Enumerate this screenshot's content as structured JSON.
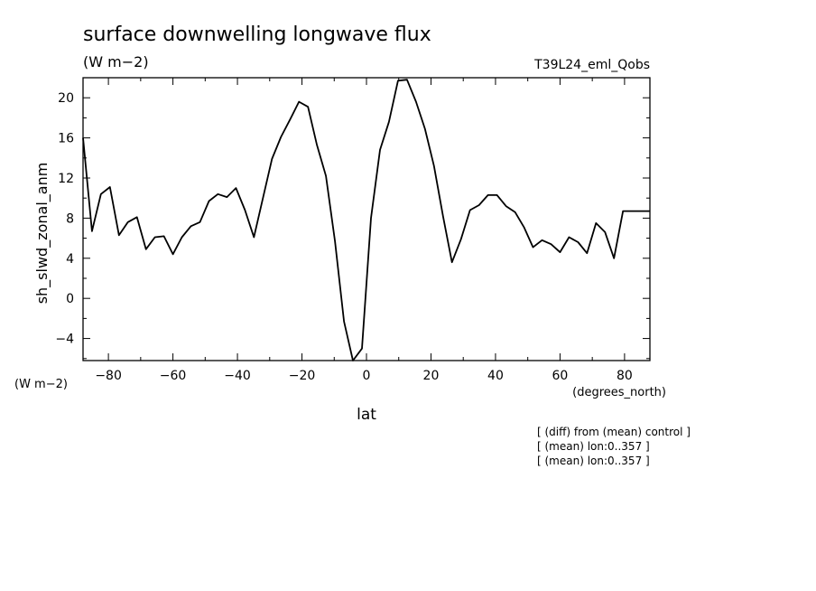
{
  "chart_data": {
    "type": "line",
    "title": "surface downwelling longwave flux",
    "units": "(W m−2)",
    "run_label": "T39L24_eml_Qobs",
    "ylabel": "sh_slwd_zonal_anm",
    "y_units_label": "(W m−2)",
    "xlabel": "lat",
    "x_units_label": "(degrees_north)",
    "notes": [
      "[ (diff) from (mean) control ]",
      "[ (mean) lon:0..357 ]",
      "[ (mean) lon:0..357 ]"
    ],
    "xlim": [
      -87.8638,
      87.8638
    ],
    "ylim": [
      -6.2,
      22
    ],
    "xticks": [
      -80,
      -60,
      -40,
      -20,
      0,
      20,
      40,
      60,
      80
    ],
    "yticks": [
      -4,
      0,
      4,
      8,
      12,
      16,
      20
    ],
    "grid": false,
    "series": [
      {
        "x": [
          -87.86,
          -85.1,
          -82.31,
          -79.53,
          -76.74,
          -73.95,
          -71.16,
          -68.37,
          -65.58,
          -62.79,
          -60.0,
          -57.21,
          -54.42,
          -51.63,
          -48.84,
          -46.05,
          -43.26,
          -40.47,
          -37.67,
          -34.88,
          -32.09,
          -29.3,
          -26.51,
          -23.72,
          -20.93,
          -18.14,
          -15.35,
          -12.56,
          -9.77,
          -6.98,
          -4.19,
          -1.4,
          1.4,
          4.19,
          6.98,
          9.77,
          12.56,
          15.35,
          18.14,
          20.93,
          23.72,
          26.51,
          29.3,
          32.09,
          34.88,
          37.67,
          40.47,
          43.26,
          46.05,
          48.84,
          51.63,
          54.42,
          57.21,
          60.0,
          62.79,
          65.58,
          68.37,
          71.16,
          73.95,
          76.74,
          79.53,
          82.31,
          85.1,
          87.86
        ],
        "values": [
          16.0,
          6.7,
          10.4,
          11.1,
          6.3,
          7.6,
          8.1,
          4.9,
          6.1,
          6.2,
          4.4,
          6.1,
          7.2,
          7.6,
          9.7,
          10.4,
          10.1,
          11.0,
          8.8,
          6.1,
          10.0,
          13.9,
          16.1,
          17.8,
          19.6,
          19.1,
          15.3,
          12.2,
          5.7,
          -2.3,
          -6.2,
          -5.0,
          8.0,
          14.8,
          17.6,
          21.7,
          21.8,
          19.6,
          16.9,
          13.2,
          8.2,
          3.6,
          5.9,
          8.8,
          9.3,
          10.3,
          10.3,
          9.2,
          8.6,
          7.1,
          5.1,
          5.8,
          5.4,
          4.6,
          6.1,
          5.6,
          4.5,
          7.5,
          6.6,
          4.0,
          8.7,
          8.7,
          8.7,
          8.7
        ]
      }
    ]
  }
}
